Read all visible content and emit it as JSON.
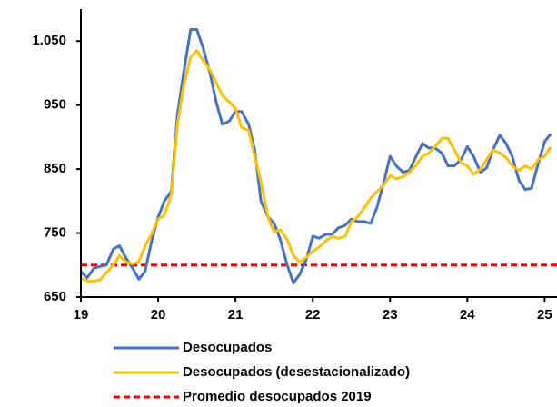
{
  "chart_data": {
    "type": "line",
    "x": [
      19,
      19.08,
      19.17,
      19.25,
      19.33,
      19.42,
      19.5,
      19.58,
      19.67,
      19.75,
      19.83,
      19.92,
      20,
      20.08,
      20.17,
      20.25,
      20.33,
      20.42,
      20.5,
      20.58,
      20.67,
      20.75,
      20.83,
      20.92,
      21,
      21.08,
      21.17,
      21.25,
      21.33,
      21.42,
      21.5,
      21.58,
      21.67,
      21.75,
      21.83,
      21.92,
      22,
      22.08,
      22.17,
      22.25,
      22.33,
      22.42,
      22.5,
      22.58,
      22.67,
      22.75,
      22.83,
      22.92,
      23,
      23.08,
      23.17,
      23.25,
      23.33,
      23.42,
      23.5,
      23.58,
      23.67,
      23.75,
      23.83,
      23.92,
      24,
      24.08,
      24.17,
      24.25,
      24.33,
      24.42,
      24.5,
      24.58,
      24.67,
      24.75,
      24.83,
      24.92,
      25,
      25.08
    ],
    "series": [
      {
        "name": "Desocupados",
        "color": "#4472c4",
        "values": [
          690,
          680,
          695,
          698,
          700,
          725,
          730,
          712,
          695,
          678,
          690,
          740,
          775,
          800,
          815,
          935,
          1000,
          1068,
          1068,
          1040,
          1000,
          955,
          920,
          925,
          940,
          940,
          920,
          880,
          800,
          775,
          765,
          740,
          700,
          672,
          685,
          710,
          745,
          742,
          748,
          748,
          758,
          762,
          772,
          768,
          768,
          765,
          790,
          830,
          870,
          855,
          845,
          848,
          868,
          890,
          883,
          883,
          875,
          855,
          855,
          865,
          885,
          870,
          845,
          852,
          880,
          903,
          890,
          870,
          832,
          818,
          820,
          860,
          893,
          905
        ]
      },
      {
        "name": "Desocupados (desestacionalizado)",
        "color": "#ffc000",
        "values": [
          680,
          675,
          675,
          677,
          688,
          700,
          715,
          705,
          702,
          705,
          730,
          750,
          772,
          778,
          810,
          920,
          980,
          1025,
          1035,
          1020,
          1005,
          985,
          965,
          955,
          945,
          915,
          910,
          870,
          830,
          775,
          752,
          755,
          740,
          715,
          705,
          712,
          722,
          728,
          738,
          745,
          742,
          745,
          768,
          775,
          790,
          805,
          815,
          825,
          840,
          835,
          838,
          845,
          855,
          870,
          875,
          885,
          898,
          898,
          880,
          860,
          855,
          842,
          850,
          865,
          880,
          875,
          868,
          855,
          848,
          855,
          850,
          865,
          870,
          885
        ]
      }
    ],
    "reference_lines": [
      {
        "name": "Promedio desocupados 2019",
        "value": 700,
        "color": "#ff0000"
      }
    ],
    "xlim": [
      19,
      25.16
    ],
    "xticks": [
      19,
      20,
      21,
      22,
      23,
      24,
      25
    ],
    "ylim": [
      650,
      1100
    ],
    "yticks": [
      650,
      750,
      850,
      950,
      {
        "value": 1050,
        "label": "1.050"
      }
    ],
    "grid": false,
    "legend": "bottom"
  }
}
